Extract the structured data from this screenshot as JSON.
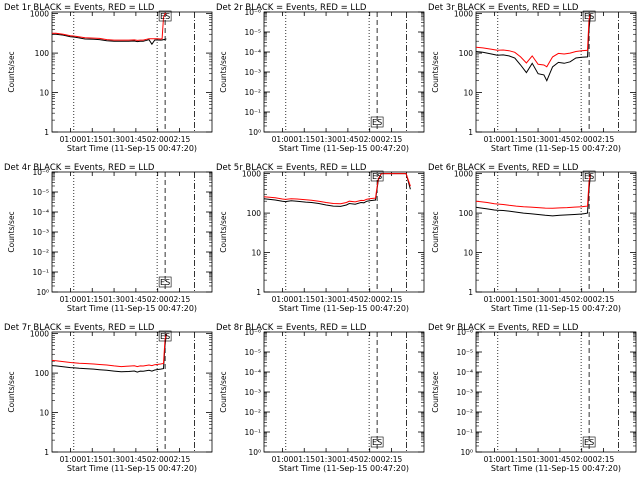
{
  "colors": {
    "events": "#000000",
    "lld": "#ff0000",
    "background": "#ffffff",
    "axis": "#000000"
  },
  "shared": {
    "x_ticks": [
      "01:00",
      "01:15",
      "01:30",
      "01:45",
      "02:00",
      "02:15"
    ],
    "x_tick_minutes": [
      60,
      75,
      90,
      105,
      120,
      135
    ],
    "xlabel": "Start Time (11-Sep-15 00:47:20)",
    "ylabel": "Counts/sec",
    "x_range_minutes": [
      47.33,
      157.33
    ],
    "markers": [
      {
        "style": "dotted",
        "minute": 62.3
      },
      {
        "style": "dotted",
        "minute": 119.6
      },
      {
        "style": "dashed",
        "minute": 125.1
      },
      {
        "style": "dashdot",
        "minute": 145.3
      }
    ],
    "es_label": "ES",
    "filled_y_ticks": [
      "1",
      "10",
      "100",
      "1000"
    ],
    "empty_y_ticks": [
      "10⁰",
      "10⁻¹",
      "10⁻²",
      "10⁻³",
      "10⁻⁴",
      "10⁻⁵",
      "10⁻⁶"
    ]
  },
  "chart_data": [
    {
      "title": "Det 1r BLACK = Events, RED = LLD",
      "type": "line",
      "y_scale": "log",
      "ylim": [
        1,
        1100
      ],
      "has_data": true,
      "x": [
        47.3,
        50,
        55,
        60,
        62,
        64,
        70,
        76,
        80,
        85,
        90,
        95,
        100,
        104,
        106,
        108,
        110,
        114,
        116,
        118,
        120,
        122,
        123,
        124,
        125,
        126
      ],
      "series": [
        {
          "name": "BLACK = Events",
          "values": [
            300,
            300,
            285,
            260,
            255,
            250,
            228,
            224,
            220,
            206,
            200,
            199,
            200,
            202,
            196,
            200,
            199,
            218,
            168,
            215,
            215,
            213,
            215,
            220,
            222,
            230
          ]
        },
        {
          "name": "RED = LLD",
          "values": [
            320,
            318,
            300,
            275,
            271,
            265,
            244,
            240,
            236,
            220,
            214,
            213,
            214,
            216,
            210,
            214,
            213,
            232,
            230,
            230,
            230,
            228,
            230,
            800,
            1000,
            1000
          ]
        }
      ]
    },
    {
      "title": "Det 2r BLACK = Events, RED = LLD",
      "type": "line",
      "y_scale": "log",
      "ylim": [
        1e-06,
        1
      ],
      "has_data": false,
      "x": [],
      "series": []
    },
    {
      "title": "Det 3r BLACK = Events, RED = LLD",
      "type": "line",
      "y_scale": "log",
      "ylim": [
        1,
        1100
      ],
      "has_data": true,
      "x": [
        47.3,
        52,
        58,
        62,
        66,
        70,
        74,
        78,
        82,
        86,
        90,
        94,
        96,
        98,
        100,
        104,
        108,
        112,
        116,
        120,
        124,
        125,
        126
      ],
      "series": [
        {
          "name": "BLACK = Events",
          "values": [
            110,
            105,
            95,
            88,
            90,
            85,
            75,
            50,
            32,
            55,
            30,
            28,
            20,
            30,
            45,
            58,
            55,
            60,
            75,
            78,
            80,
            400,
            900
          ]
        },
        {
          "name": "RED = LLD",
          "values": [
            140,
            135,
            125,
            118,
            120,
            115,
            105,
            80,
            56,
            85,
            52,
            50,
            45,
            60,
            80,
            98,
            95,
            100,
            110,
            115,
            118,
            700,
            1000
          ]
        }
      ]
    },
    {
      "title": "Det 4r BLACK = Events, RED = LLD",
      "type": "line",
      "y_scale": "log",
      "ylim": [
        1e-06,
        1
      ],
      "has_data": false,
      "x": [],
      "series": []
    },
    {
      "title": "Det 5r BLACK = Events, RED = LLD",
      "type": "line",
      "y_scale": "log",
      "ylim": [
        1,
        1100
      ],
      "has_data": true,
      "x": [
        47.3,
        55,
        60,
        62,
        66,
        70,
        76,
        80,
        85,
        90,
        95,
        100,
        104,
        106,
        110,
        114,
        116,
        118,
        120,
        122,
        124,
        125,
        126,
        128,
        130,
        140,
        145,
        148
      ],
      "series": [
        {
          "name": "BLACK = Events",
          "values": [
            230,
            215,
            200,
            195,
            205,
            200,
            190,
            185,
            175,
            160,
            150,
            148,
            160,
            175,
            168,
            185,
            182,
            200,
            205,
            210,
            215,
            400,
            700,
            1000,
            1000,
            1000,
            1000,
            400
          ]
        },
        {
          "name": "RED = LLD",
          "values": [
            260,
            245,
            228,
            222,
            232,
            228,
            218,
            212,
            200,
            185,
            175,
            172,
            185,
            200,
            192,
            210,
            208,
            225,
            230,
            235,
            240,
            450,
            750,
            1000,
            1000,
            1000,
            1000,
            480
          ]
        }
      ]
    },
    {
      "title": "Det 6r BLACK = Events, RED = LLD",
      "type": "line",
      "y_scale": "log",
      "ylim": [
        1,
        1100
      ],
      "has_data": true,
      "x": [
        47.3,
        50,
        55,
        60,
        62,
        66,
        70,
        75,
        80,
        85,
        90,
        95,
        100,
        105,
        110,
        115,
        120,
        122,
        124,
        125,
        126
      ],
      "series": [
        {
          "name": "BLACK = Events",
          "values": [
            140,
            135,
            128,
            120,
            118,
            116,
            112,
            106,
            100,
            96,
            92,
            88,
            85,
            88,
            90,
            92,
            95,
            97,
            100,
            400,
            900
          ]
        },
        {
          "name": "RED = LLD",
          "values": [
            200,
            195,
            185,
            172,
            170,
            165,
            158,
            150,
            145,
            142,
            138,
            134,
            132,
            135,
            138,
            142,
            145,
            148,
            150,
            600,
            1000
          ]
        }
      ]
    },
    {
      "title": "Det 7r BLACK = Events, RED = LLD",
      "type": "line",
      "y_scale": "log",
      "ylim": [
        1,
        1100
      ],
      "has_data": true,
      "x": [
        47.3,
        50,
        55,
        60,
        62,
        66,
        70,
        76,
        80,
        85,
        90,
        95,
        100,
        104,
        106,
        108,
        110,
        114,
        116,
        118,
        120,
        122,
        124,
        125,
        126
      ],
      "series": [
        {
          "name": "BLACK = Events",
          "values": [
            155,
            152,
            145,
            138,
            136,
            132,
            130,
            126,
            122,
            118,
            112,
            108,
            110,
            113,
            106,
            112,
            111,
            118,
            112,
            120,
            123,
            126,
            130,
            500,
            1000
          ]
        },
        {
          "name": "RED = LLD",
          "values": [
            210,
            205,
            196,
            186,
            183,
            178,
            175,
            170,
            165,
            160,
            152,
            146,
            150,
            153,
            146,
            152,
            151,
            160,
            155,
            163,
            166,
            170,
            175,
            700,
            1000
          ]
        }
      ]
    },
    {
      "title": "Det 8r BLACK = Events, RED = LLD",
      "type": "line",
      "y_scale": "log",
      "ylim": [
        1e-06,
        1
      ],
      "has_data": false,
      "x": [],
      "series": []
    },
    {
      "title": "Det 9r BLACK = Events, RED = LLD",
      "type": "line",
      "y_scale": "log",
      "ylim": [
        1e-06,
        1
      ],
      "has_data": false,
      "x": [],
      "series": []
    }
  ]
}
